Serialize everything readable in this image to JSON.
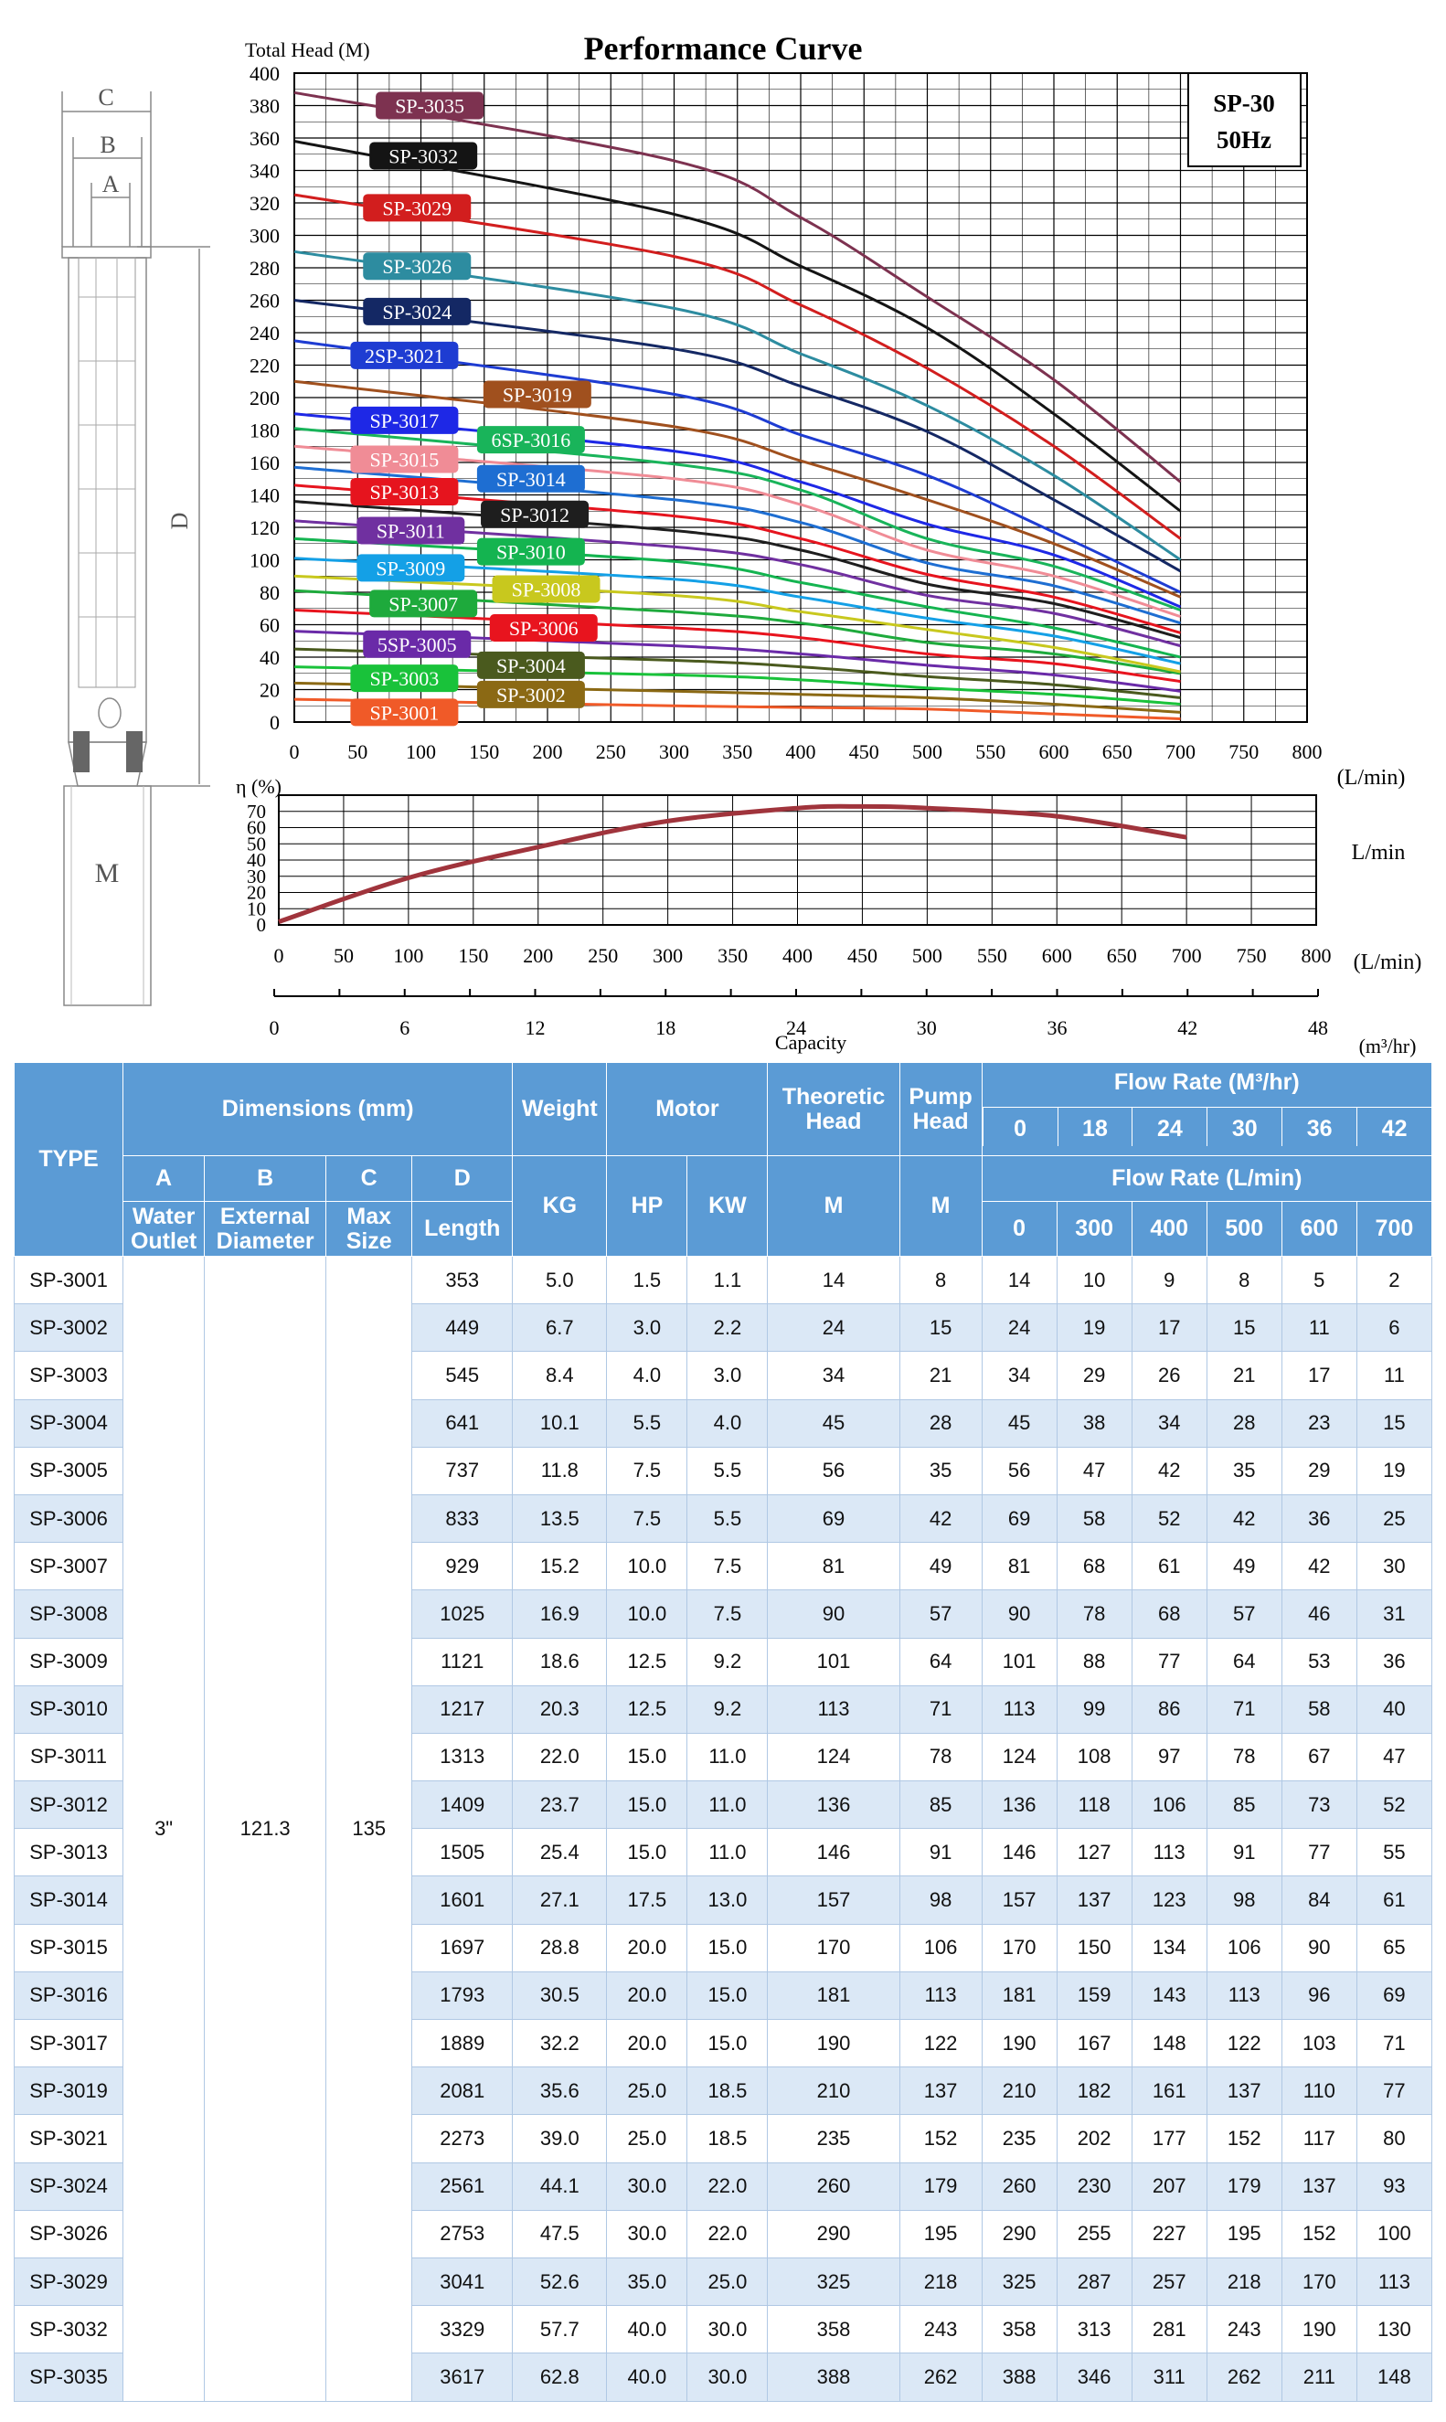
{
  "chart_title": "Performance Curve",
  "model_box": {
    "line1": "SP-30",
    "line2": "50Hz"
  },
  "diagram_labels": {
    "c": "C",
    "b": "B",
    "a": "A",
    "d": "D",
    "m": "M"
  },
  "colors": {
    "grid": "#000000",
    "efficiency": "#a0343c",
    "header_bg": "#5b9bd5",
    "row_alt": "#dbe8f6"
  },
  "chart_data": [
    {
      "type": "line",
      "title": "Performance Curve",
      "ylabel": "Total Head (M)",
      "xlabel": "(L/min)",
      "xlim": [
        0,
        800
      ],
      "ylim": [
        0,
        400
      ],
      "x_ticks": [
        0,
        50,
        100,
        150,
        200,
        250,
        300,
        350,
        400,
        450,
        500,
        550,
        600,
        650,
        700,
        750,
        800
      ],
      "y_ticks": [
        0,
        20,
        40,
        60,
        80,
        100,
        120,
        140,
        160,
        180,
        200,
        220,
        240,
        260,
        280,
        300,
        320,
        340,
        360,
        380,
        400
      ],
      "grid": true,
      "x": [
        0,
        300,
        400,
        500,
        600,
        700
      ],
      "series": [
        {
          "name": "SP-3001",
          "color": "#f05a28",
          "label_pos": [
            40,
            6
          ],
          "values": [
            14,
            10,
            9,
            8,
            5,
            2
          ]
        },
        {
          "name": "SP-3002",
          "color": "#8b6914",
          "label_pos": [
            140,
            17
          ],
          "values": [
            24,
            19,
            17,
            15,
            11,
            6
          ]
        },
        {
          "name": "SP-3003",
          "color": "#19c23a",
          "label_pos": [
            40,
            27
          ],
          "values": [
            34,
            29,
            26,
            21,
            17,
            11
          ]
        },
        {
          "name": "SP-3004",
          "color": "#4a5a1e",
          "label_pos": [
            140,
            35
          ],
          "values": [
            45,
            38,
            34,
            28,
            23,
            15
          ]
        },
        {
          "name": "5SP-3005",
          "color": "#6a2aa8",
          "label_pos": [
            50,
            48
          ],
          "values": [
            56,
            47,
            42,
            35,
            29,
            19
          ]
        },
        {
          "name": "SP-3006",
          "color": "#e8141e",
          "label_pos": [
            150,
            58
          ],
          "values": [
            69,
            58,
            52,
            42,
            36,
            25
          ]
        },
        {
          "name": "SP-3007",
          "color": "#1eaa3c",
          "label_pos": [
            55,
            73
          ],
          "values": [
            81,
            68,
            61,
            49,
            42,
            30
          ]
        },
        {
          "name": "SP-3008",
          "color": "#c8c81e",
          "label_pos": [
            152,
            82
          ],
          "values": [
            90,
            78,
            68,
            57,
            46,
            31
          ]
        },
        {
          "name": "SP-3009",
          "color": "#14a0e6",
          "label_pos": [
            45,
            95
          ],
          "values": [
            101,
            88,
            77,
            64,
            53,
            36
          ]
        },
        {
          "name": "SP-3010",
          "color": "#14b450",
          "label_pos": [
            140,
            105
          ],
          "values": [
            113,
            99,
            86,
            71,
            58,
            40
          ]
        },
        {
          "name": "SP-3011",
          "color": "#7030a0",
          "label_pos": [
            45,
            118
          ],
          "values": [
            124,
            108,
            97,
            78,
            67,
            47
          ]
        },
        {
          "name": "SP-3012",
          "color": "#1e1e1e",
          "label_pos": [
            143,
            128
          ],
          "values": [
            136,
            118,
            106,
            85,
            73,
            52
          ]
        },
        {
          "name": "SP-3013",
          "color": "#e6141e",
          "label_pos": [
            40,
            142
          ],
          "values": [
            146,
            127,
            113,
            91,
            77,
            55
          ]
        },
        {
          "name": "SP-3014",
          "color": "#1e6ed2",
          "label_pos": [
            140,
            150
          ],
          "values": [
            157,
            137,
            123,
            98,
            84,
            61
          ]
        },
        {
          "name": "SP-3015",
          "color": "#f08c96",
          "label_pos": [
            40,
            162
          ],
          "values": [
            170,
            150,
            134,
            106,
            90,
            65
          ]
        },
        {
          "name": "6SP-3016",
          "color": "#19b45a",
          "label_pos": [
            140,
            174
          ],
          "values": [
            181,
            159,
            143,
            113,
            96,
            69
          ]
        },
        {
          "name": "SP-3017",
          "color": "#1e28e6",
          "label_pos": [
            40,
            186
          ],
          "values": [
            190,
            167,
            148,
            122,
            103,
            71
          ]
        },
        {
          "name": "SP-3019",
          "color": "#a0501e",
          "label_pos": [
            145,
            202
          ],
          "values": [
            210,
            182,
            161,
            137,
            110,
            77
          ]
        },
        {
          "name": "2SP-3021",
          "color": "#1e3cd2",
          "label_pos": [
            40,
            226
          ],
          "values": [
            235,
            202,
            177,
            152,
            117,
            80
          ]
        },
        {
          "name": "SP-3024",
          "color": "#142864",
          "label_pos": [
            50,
            253
          ],
          "values": [
            260,
            230,
            207,
            179,
            137,
            93
          ]
        },
        {
          "name": "SP-3026",
          "color": "#2d8ca0",
          "label_pos": [
            50,
            281
          ],
          "values": [
            290,
            255,
            227,
            195,
            152,
            100
          ]
        },
        {
          "name": "SP-3029",
          "color": "#d21e1e",
          "label_pos": [
            50,
            317
          ],
          "values": [
            325,
            287,
            257,
            218,
            170,
            113
          ]
        },
        {
          "name": "SP-3032",
          "color": "#141414",
          "label_pos": [
            55,
            349
          ],
          "values": [
            358,
            313,
            281,
            243,
            190,
            130
          ]
        },
        {
          "name": "SP-3035",
          "color": "#7d3250",
          "label_pos": [
            60,
            380
          ],
          "values": [
            388,
            346,
            311,
            262,
            211,
            148
          ]
        }
      ]
    },
    {
      "type": "line",
      "title": "",
      "ylabel": "η (%)",
      "right_label": "L/min",
      "xlim": [
        0,
        800
      ],
      "ylim": [
        0,
        80
      ],
      "x_ticks": [
        0,
        50,
        100,
        150,
        200,
        250,
        300,
        350,
        400,
        450,
        500,
        550,
        600,
        650,
        700,
        750,
        800
      ],
      "x_unit": "(L/min)",
      "y_ticks": [
        0,
        10,
        20,
        30,
        40,
        50,
        60,
        70
      ],
      "grid": true,
      "x": [
        0,
        100,
        200,
        300,
        400,
        450,
        500,
        600,
        700
      ],
      "series": [
        {
          "name": "",
          "color": "#a0343c",
          "values": [
            2,
            29,
            48,
            64,
            72,
            73,
            72,
            67,
            54
          ]
        }
      ]
    }
  ],
  "capacity_axis": {
    "ticks": [
      "0",
      "6",
      "12",
      "18",
      "24",
      "30",
      "36",
      "42",
      "48"
    ],
    "label": "Capacity",
    "unit": "(m³/hr)"
  },
  "table": {
    "h_type": "TYPE",
    "h_dimensions": "Dimensions (mm)",
    "h_weight": "Weight",
    "h_motor": "Motor",
    "h_theoretic": "Theoretic Head",
    "h_pump": "Pump Head",
    "h_flow_m3": "Flow Rate   (M³/hr)",
    "h_flow_l": "Flow Rate   (L/min)",
    "flow_m3": [
      "0",
      "18",
      "24",
      "30",
      "36",
      "42"
    ],
    "flow_l": [
      "0",
      "300",
      "400",
      "500",
      "600",
      "700"
    ],
    "h_a": "A",
    "h_b": "B",
    "h_c": "C",
    "h_d": "D",
    "h_a2": "Water Outlet",
    "h_b2": "External Diameter",
    "h_c2": "Max Size",
    "h_d2": "Length",
    "h_kg": "KG",
    "h_hp": "HP",
    "h_kw": "KW",
    "h_m": "M",
    "h_m2": "M",
    "shared": {
      "a": "3\"",
      "b": "121.3",
      "c": "135"
    },
    "rows": [
      [
        "SP-3001",
        "353",
        "5.0",
        "1.5",
        "1.1",
        "14",
        "8",
        "14",
        "10",
        "9",
        "8",
        "5",
        "2"
      ],
      [
        "SP-3002",
        "449",
        "6.7",
        "3.0",
        "2.2",
        "24",
        "15",
        "24",
        "19",
        "17",
        "15",
        "11",
        "6"
      ],
      [
        "SP-3003",
        "545",
        "8.4",
        "4.0",
        "3.0",
        "34",
        "21",
        "34",
        "29",
        "26",
        "21",
        "17",
        "11"
      ],
      [
        "SP-3004",
        "641",
        "10.1",
        "5.5",
        "4.0",
        "45",
        "28",
        "45",
        "38",
        "34",
        "28",
        "23",
        "15"
      ],
      [
        "SP-3005",
        "737",
        "11.8",
        "7.5",
        "5.5",
        "56",
        "35",
        "56",
        "47",
        "42",
        "35",
        "29",
        "19"
      ],
      [
        "SP-3006",
        "833",
        "13.5",
        "7.5",
        "5.5",
        "69",
        "42",
        "69",
        "58",
        "52",
        "42",
        "36",
        "25"
      ],
      [
        "SP-3007",
        "929",
        "15.2",
        "10.0",
        "7.5",
        "81",
        "49",
        "81",
        "68",
        "61",
        "49",
        "42",
        "30"
      ],
      [
        "SP-3008",
        "1025",
        "16.9",
        "10.0",
        "7.5",
        "90",
        "57",
        "90",
        "78",
        "68",
        "57",
        "46",
        "31"
      ],
      [
        "SP-3009",
        "1121",
        "18.6",
        "12.5",
        "9.2",
        "101",
        "64",
        "101",
        "88",
        "77",
        "64",
        "53",
        "36"
      ],
      [
        "SP-3010",
        "1217",
        "20.3",
        "12.5",
        "9.2",
        "113",
        "71",
        "113",
        "99",
        "86",
        "71",
        "58",
        "40"
      ],
      [
        "SP-3011",
        "1313",
        "22.0",
        "15.0",
        "11.0",
        "124",
        "78",
        "124",
        "108",
        "97",
        "78",
        "67",
        "47"
      ],
      [
        "SP-3012",
        "1409",
        "23.7",
        "15.0",
        "11.0",
        "136",
        "85",
        "136",
        "118",
        "106",
        "85",
        "73",
        "52"
      ],
      [
        "SP-3013",
        "1505",
        "25.4",
        "15.0",
        "11.0",
        "146",
        "91",
        "146",
        "127",
        "113",
        "91",
        "77",
        "55"
      ],
      [
        "SP-3014",
        "1601",
        "27.1",
        "17.5",
        "13.0",
        "157",
        "98",
        "157",
        "137",
        "123",
        "98",
        "84",
        "61"
      ],
      [
        "SP-3015",
        "1697",
        "28.8",
        "20.0",
        "15.0",
        "170",
        "106",
        "170",
        "150",
        "134",
        "106",
        "90",
        "65"
      ],
      [
        "SP-3016",
        "1793",
        "30.5",
        "20.0",
        "15.0",
        "181",
        "113",
        "181",
        "159",
        "143",
        "113",
        "96",
        "69"
      ],
      [
        "SP-3017",
        "1889",
        "32.2",
        "20.0",
        "15.0",
        "190",
        "122",
        "190",
        "167",
        "148",
        "122",
        "103",
        "71"
      ],
      [
        "SP-3019",
        "2081",
        "35.6",
        "25.0",
        "18.5",
        "210",
        "137",
        "210",
        "182",
        "161",
        "137",
        "110",
        "77"
      ],
      [
        "SP-3021",
        "2273",
        "39.0",
        "25.0",
        "18.5",
        "235",
        "152",
        "235",
        "202",
        "177",
        "152",
        "117",
        "80"
      ],
      [
        "SP-3024",
        "2561",
        "44.1",
        "30.0",
        "22.0",
        "260",
        "179",
        "260",
        "230",
        "207",
        "179",
        "137",
        "93"
      ],
      [
        "SP-3026",
        "2753",
        "47.5",
        "30.0",
        "22.0",
        "290",
        "195",
        "290",
        "255",
        "227",
        "195",
        "152",
        "100"
      ],
      [
        "SP-3029",
        "3041",
        "52.6",
        "35.0",
        "25.0",
        "325",
        "218",
        "325",
        "287",
        "257",
        "218",
        "170",
        "113"
      ],
      [
        "SP-3032",
        "3329",
        "57.7",
        "40.0",
        "30.0",
        "358",
        "243",
        "358",
        "313",
        "281",
        "243",
        "190",
        "130"
      ],
      [
        "SP-3035",
        "3617",
        "62.8",
        "40.0",
        "30.0",
        "388",
        "262",
        "388",
        "346",
        "311",
        "262",
        "211",
        "148"
      ]
    ]
  }
}
